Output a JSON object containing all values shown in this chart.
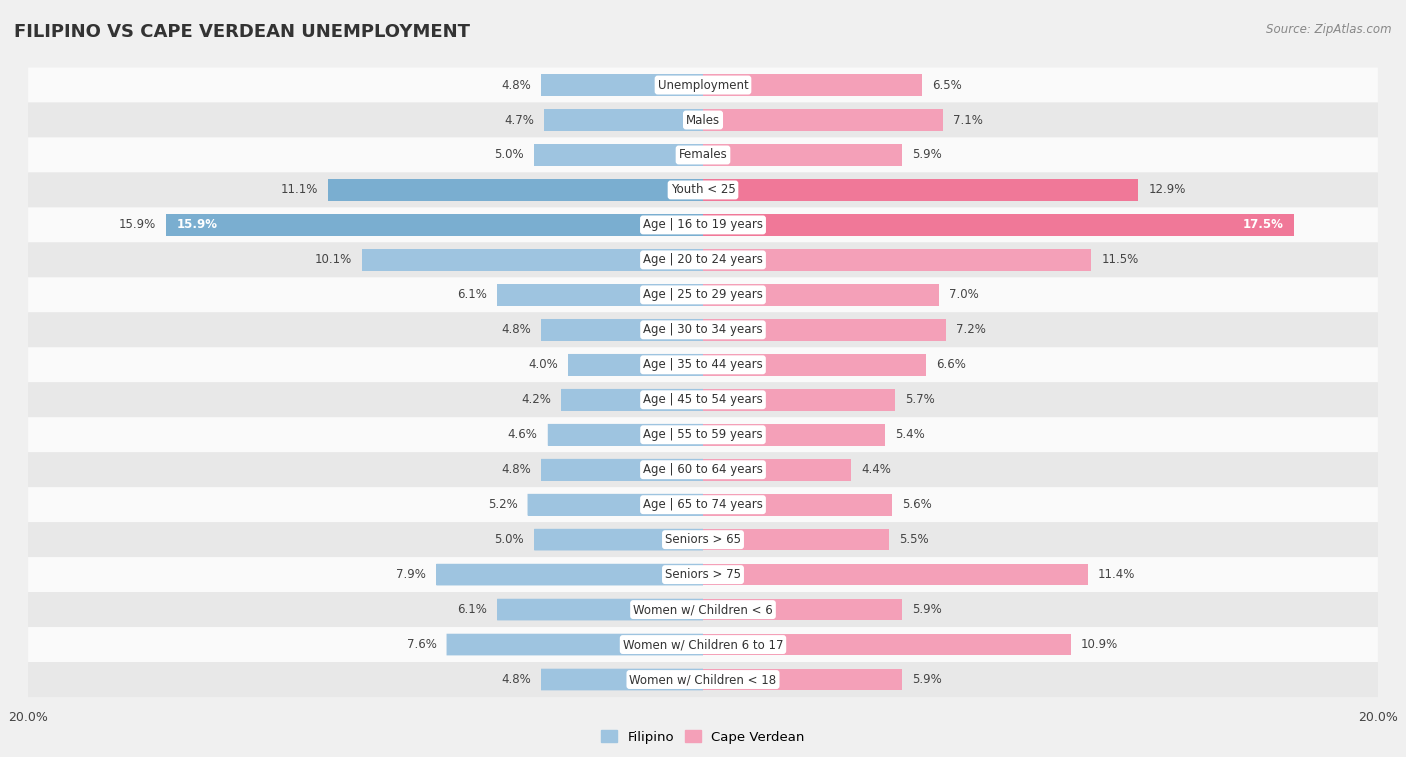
{
  "title": "FILIPINO VS CAPE VERDEAN UNEMPLOYMENT",
  "source": "Source: ZipAtlas.com",
  "categories": [
    "Unemployment",
    "Males",
    "Females",
    "Youth < 25",
    "Age | 16 to 19 years",
    "Age | 20 to 24 years",
    "Age | 25 to 29 years",
    "Age | 30 to 34 years",
    "Age | 35 to 44 years",
    "Age | 45 to 54 years",
    "Age | 55 to 59 years",
    "Age | 60 to 64 years",
    "Age | 65 to 74 years",
    "Seniors > 65",
    "Seniors > 75",
    "Women w/ Children < 6",
    "Women w/ Children 6 to 17",
    "Women w/ Children < 18"
  ],
  "filipino": [
    4.8,
    4.7,
    5.0,
    11.1,
    15.9,
    10.1,
    6.1,
    4.8,
    4.0,
    4.2,
    4.6,
    4.8,
    5.2,
    5.0,
    7.9,
    6.1,
    7.6,
    4.8
  ],
  "cape_verdean": [
    6.5,
    7.1,
    5.9,
    12.9,
    17.5,
    11.5,
    7.0,
    7.2,
    6.6,
    5.7,
    5.4,
    4.4,
    5.6,
    5.5,
    11.4,
    5.9,
    10.9,
    5.9
  ],
  "filipino_color": "#9ec4e0",
  "cape_verdean_color": "#f4a0b8",
  "highlight_rows": [
    3,
    4
  ],
  "filipino_highlight_color": "#7aaed0",
  "cape_verdean_highlight_color": "#f07898",
  "bar_height": 0.62,
  "max_val": 20.0,
  "bg_color": "#f0f0f0",
  "row_colors": [
    "#fafafa",
    "#e8e8e8"
  ],
  "legend_filipino": "Filipino",
  "legend_cape_verdean": "Cape Verdean",
  "label_fontsize": 8.5,
  "value_fontsize": 8.5,
  "title_fontsize": 13
}
